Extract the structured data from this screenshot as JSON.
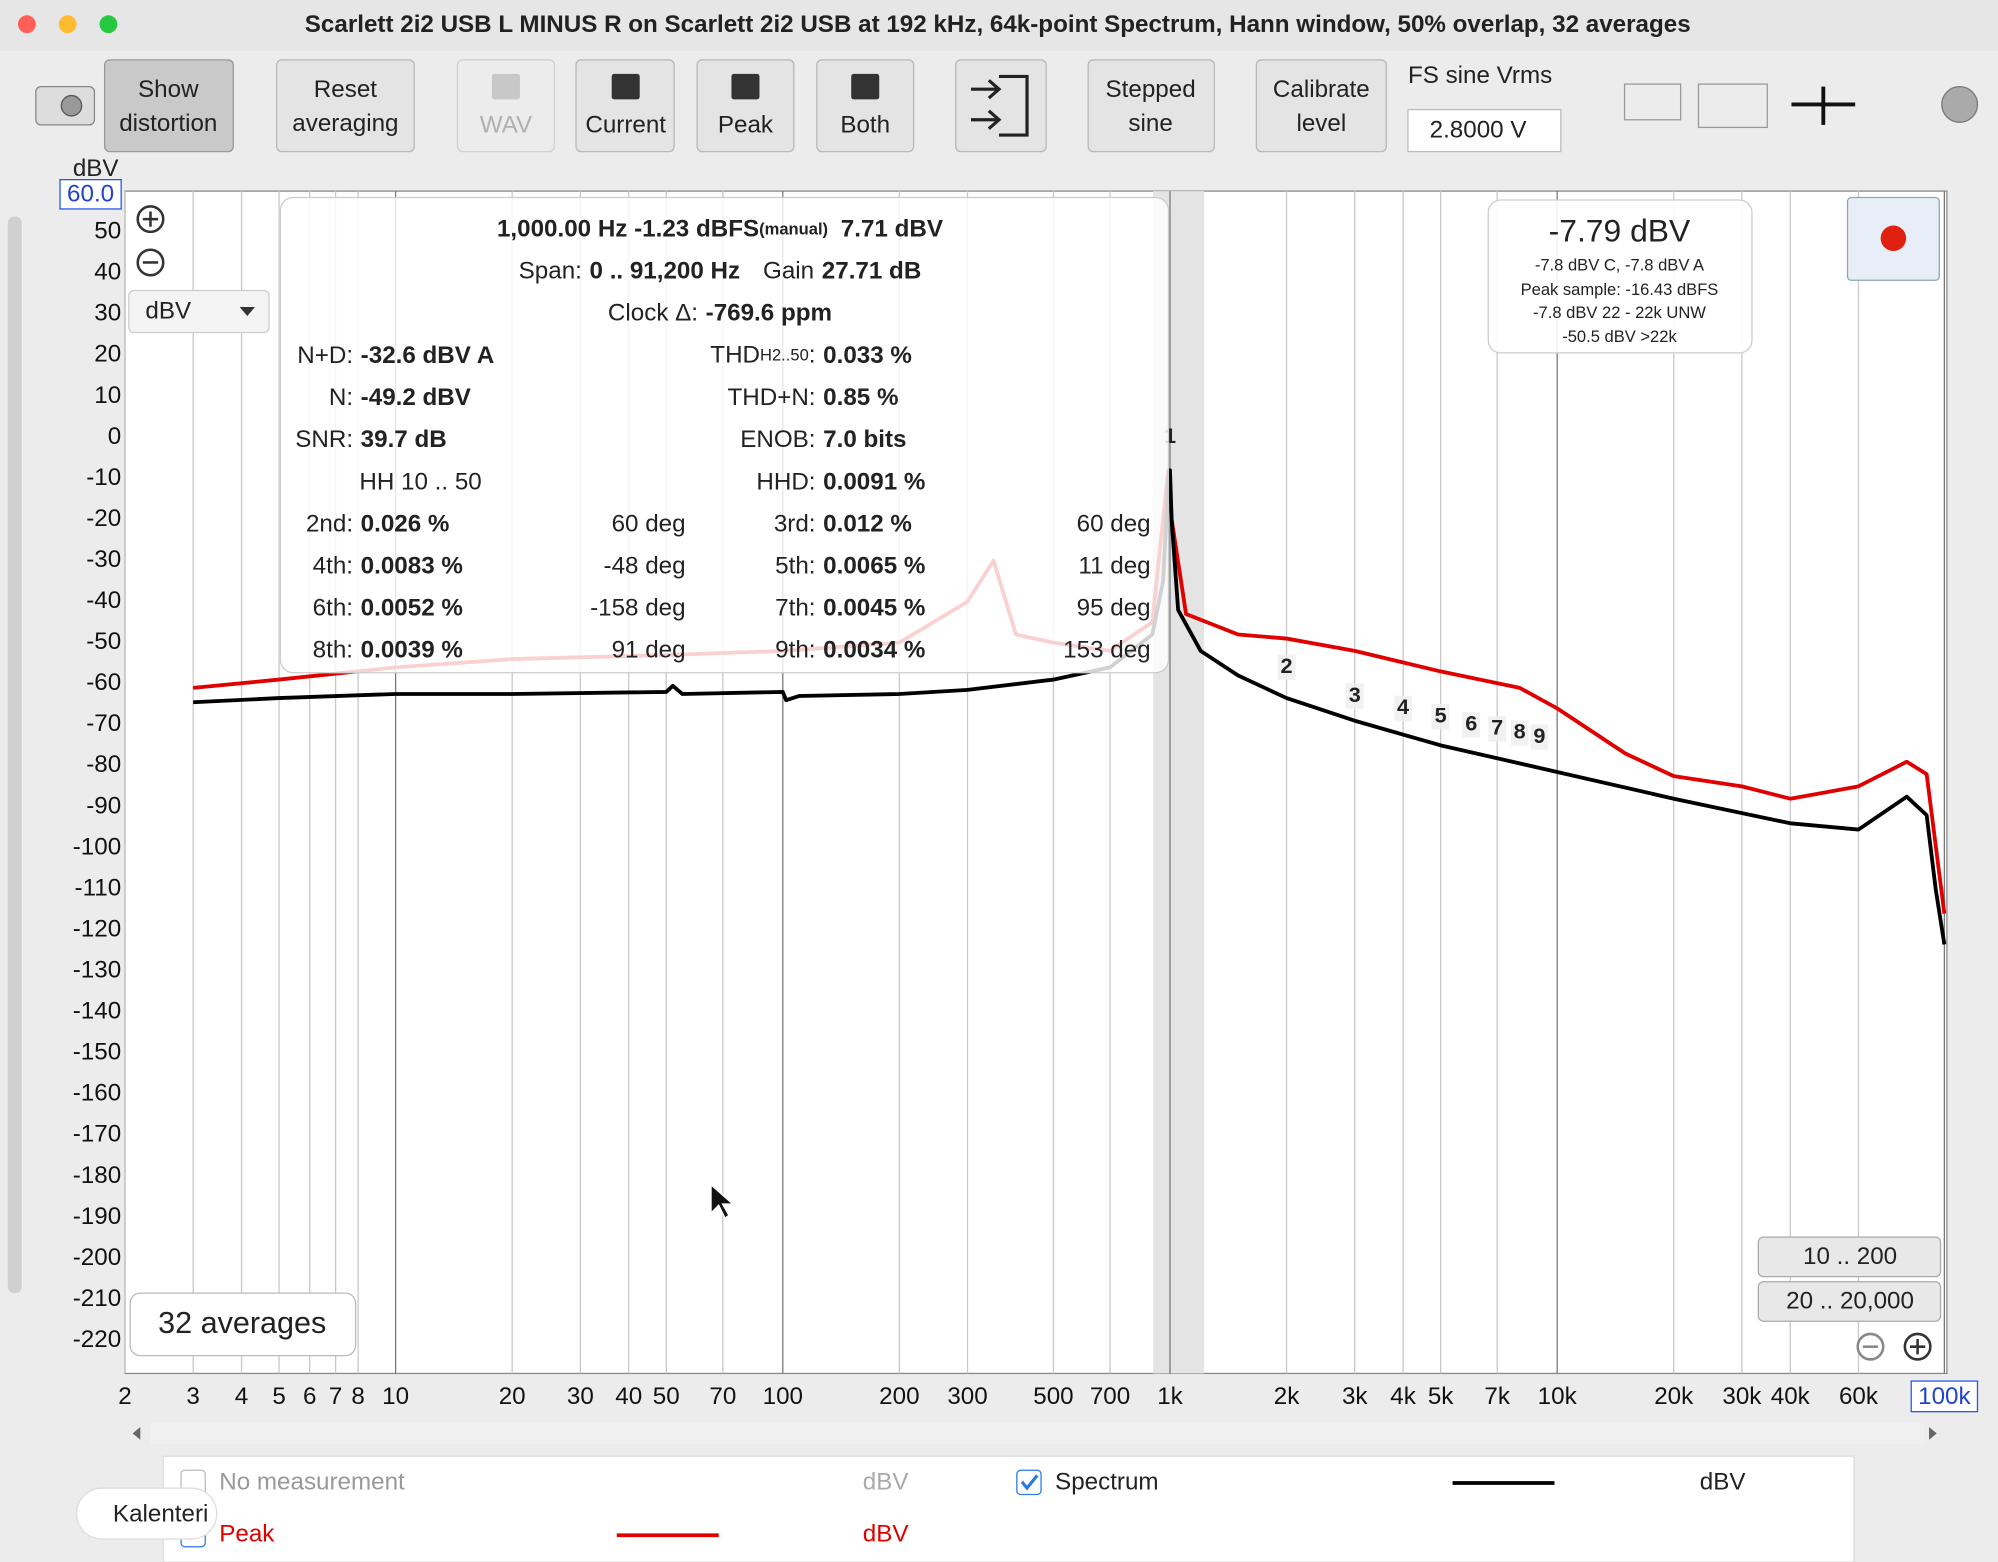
{
  "window": {
    "title": "Scarlett 2i2 USB  L MINUS R on Scarlett 2i2 USB at 192 kHz, 64k-point Spectrum, Hann window, 50% overlap, 32 averages"
  },
  "toolbar": {
    "show_distortion": [
      "Show",
      "distortion"
    ],
    "reset_averaging": [
      "Reset",
      "averaging"
    ],
    "wav": "WAV",
    "current": "Current",
    "peak": "Peak",
    "both": "Both",
    "stepped_sine": [
      "Stepped",
      "sine"
    ],
    "calibrate_level": [
      "Calibrate",
      "level"
    ],
    "fs_label": "FS sine Vrms",
    "fs_value": "2.8000 V"
  },
  "plot_controls": {
    "unit_axis": "dBV",
    "y_max": "60.0",
    "unit_dropdown": "dBV",
    "averages": "32 averages",
    "range_buttons": [
      "10 .. 200",
      "20 .. 20,000"
    ]
  },
  "stats": {
    "freq": "1,000.00 Hz  -1.23 dBFS",
    "manual": "(manual)",
    "level": "7.71 dBV",
    "span_label": "Span:",
    "span": "0 .. 91,200 Hz",
    "gain_label": "Gain",
    "gain": "27.71 dB",
    "clock_label": "Clock Δ:",
    "clock": "-769.6 ppm",
    "nd_label": "N+D:",
    "nd": "-32.6 dBV A",
    "n_label": "N:",
    "n": "-49.2 dBV",
    "snr_label": "SNR:",
    "snr": "39.7 dB",
    "thd_label": "THD",
    "thd_sub": "H2..50",
    "thd_colon": ":",
    "thd": "0.033 %",
    "thdn_label": "THD+N:",
    "thdn": "0.85 %",
    "enob_label": "ENOB:",
    "enob": "7.0 bits",
    "hh": "HH 10 .. 50",
    "hhd_label": "HHD:",
    "hhd": "0.0091 %",
    "harmonics": [
      {
        "name": "2nd:",
        "value": "0.026 %",
        "phase": "60 deg"
      },
      {
        "name": "3rd:",
        "value": "0.012 %",
        "phase": "60 deg"
      },
      {
        "name": "4th:",
        "value": "0.0083 %",
        "phase": "-48 deg"
      },
      {
        "name": "5th:",
        "value": "0.0065 %",
        "phase": "11 deg"
      },
      {
        "name": "6th:",
        "value": "0.0052 %",
        "phase": "-158 deg"
      },
      {
        "name": "7th:",
        "value": "0.0045 %",
        "phase": "95 deg"
      },
      {
        "name": "8th:",
        "value": "0.0039 %",
        "phase": "91 deg"
      },
      {
        "name": "9th:",
        "value": "0.0034 %",
        "phase": "153 deg"
      }
    ]
  },
  "level_box": {
    "main": "-7.79 dBV",
    "lines": [
      "-7.8 dBV C, -7.8 dBV A",
      "Peak sample: -16.43 dBFS",
      "-7.8 dBV 22 - 22k UNW",
      "-50.5 dBV >22k"
    ]
  },
  "legend": {
    "no_measurement": "No measurement",
    "units": [
      "dBV",
      "dBV",
      "dBV"
    ]
  },
  "tooltip": "Kalenteri",
  "chart_data": {
    "type": "line",
    "log_x": true,
    "grid": true,
    "xlim": [
      2,
      100000
    ],
    "ylim": [
      -228,
      60
    ],
    "xticks": [
      2,
      3,
      4,
      5,
      6,
      7,
      8,
      10,
      20,
      30,
      40,
      50,
      70,
      100,
      200,
      300,
      500,
      700,
      {
        "value": 1000,
        "label": "1k"
      },
      {
        "value": 2000,
        "label": "2k"
      },
      {
        "value": 3000,
        "label": "3k"
      },
      {
        "value": 4000,
        "label": "4k"
      },
      {
        "value": 5000,
        "label": "5k"
      },
      {
        "value": 7000,
        "label": "7k"
      },
      {
        "value": 10000,
        "label": "10k"
      },
      {
        "value": 20000,
        "label": "20k"
      },
      {
        "value": 30000,
        "label": "30k"
      },
      {
        "value": 40000,
        "label": "40k"
      },
      {
        "value": 60000,
        "label": "60k"
      },
      {
        "value": 100000,
        "label": "100k"
      }
    ],
    "yticks": [
      50,
      40,
      30,
      20,
      10,
      0,
      -10,
      -20,
      -30,
      -40,
      -50,
      -60,
      -70,
      -80,
      -90,
      -100,
      -110,
      -120,
      -130,
      -140,
      -150,
      -160,
      -170,
      -180,
      -190,
      -200,
      -210,
      -220
    ],
    "series": [
      {
        "name": "Spectrum",
        "color": "#000000",
        "x": [
          3,
          5,
          10,
          20,
          50,
          52,
          55,
          100,
          102,
          110,
          200,
          300,
          500,
          700,
          900,
          960,
          990,
          1000,
          1010,
          1050,
          1200,
          1500,
          2000,
          3000,
          5000,
          10000,
          20000,
          40000,
          60000,
          80000,
          90000,
          95000,
          100000
        ],
        "values": [
          -64.5,
          -63.5,
          -62.5,
          -62.5,
          -62,
          -60.5,
          -62.5,
          -62,
          -64,
          -63,
          -62.5,
          -61.5,
          -59,
          -56,
          -48,
          -35,
          -10,
          -8,
          -20,
          -42,
          -52,
          -58,
          -63.5,
          -69,
          -75,
          -81.5,
          -88,
          -94,
          -95.5,
          -87.5,
          -92,
          -110,
          -123.5
        ]
      },
      {
        "name": "Peak",
        "color": "#e00000",
        "x": [
          3,
          5,
          10,
          20,
          50,
          100,
          200,
          300,
          350,
          400,
          500,
          700,
          900,
          990,
          1010,
          1100,
          1500,
          2000,
          3000,
          5000,
          8000,
          10000,
          15000,
          20000,
          30000,
          40000,
          60000,
          80000,
          90000,
          100000
        ],
        "values": [
          -61,
          -59,
          -56,
          -54,
          -53,
          -52,
          -50,
          -40,
          -30,
          -48,
          -50,
          -52,
          -45,
          -8,
          -20,
          -43,
          -48,
          -49,
          -52,
          -57,
          -61,
          -66,
          -77,
          -82.5,
          -85,
          -88,
          -85,
          -79,
          -82,
          -116
        ]
      }
    ],
    "annotations": [
      {
        "label": "1",
        "x": 1000,
        "y": 0
      },
      {
        "label": "2",
        "x": 2000,
        "y": -56
      },
      {
        "label": "3",
        "x": 3000,
        "y": -63
      },
      {
        "label": "4",
        "x": 4000,
        "y": -66
      },
      {
        "label": "5",
        "x": 5000,
        "y": -68
      },
      {
        "label": "6",
        "x": 6000,
        "y": -70
      },
      {
        "label": "7",
        "x": 7000,
        "y": -71
      },
      {
        "label": "8",
        "x": 8000,
        "y": -72
      },
      {
        "label": "9",
        "x": 9000,
        "y": -73
      }
    ]
  }
}
